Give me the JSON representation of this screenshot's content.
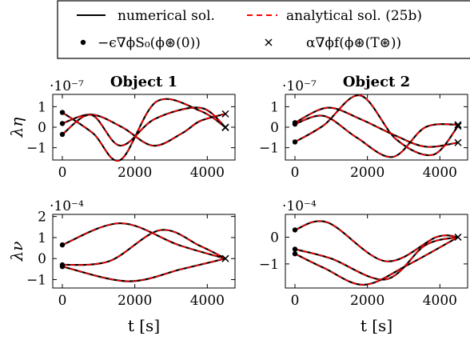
{
  "legend": {
    "numerical": "numerical sol.",
    "analytical": "analytical sol. (25b)",
    "initial": "−ϵ∇ϕS₀(ϕ⊛(0))",
    "final": "α∇ϕf(ϕ⊛(T⊛))"
  },
  "colors": {
    "numerical": "#000000",
    "analytical": "#ff0000"
  },
  "chart_data": [
    {
      "type": "line",
      "title": "Object 1",
      "ylabel": "λη",
      "xlabel": "",
      "multiplier": "·10⁻⁷",
      "xlim": [
        0,
        4500
      ],
      "ylim": [
        -1.6,
        1.6
      ],
      "xticks": [
        "0",
        "2000",
        "4000"
      ],
      "yticks": [
        "1",
        "0",
        "−1"
      ],
      "grid": false,
      "series": [
        {
          "x": [
            0,
            800,
            1650,
            2500,
            3300,
            3800,
            4500
          ],
          "values": [
            0.18,
            0.62,
            0.0,
            -0.9,
            -0.3,
            0.3,
            0.65
          ]
        },
        {
          "x": [
            0,
            850,
            1600,
            2600,
            3800,
            4500
          ],
          "values": [
            0.72,
            -0.3,
            -1.6,
            1.25,
            0.8,
            0.0
          ]
        },
        {
          "x": [
            0,
            800,
            1600,
            2550,
            3800,
            4500
          ],
          "values": [
            -0.35,
            0.6,
            -0.9,
            0.4,
            0.95,
            0.0
          ]
        }
      ],
      "markers_initial": [
        0.72,
        0.18,
        -0.35
      ],
      "markers_final": [
        0.65,
        0.0,
        -0.02
      ]
    },
    {
      "type": "line",
      "title": "Object 2",
      "ylabel": "",
      "xlabel": "",
      "multiplier": "·10⁻⁷",
      "xlim": [
        0,
        4500
      ],
      "ylim": [
        -1.6,
        1.6
      ],
      "xticks": [
        "0",
        "2000",
        "4000"
      ],
      "yticks": [
        "1",
        "0",
        "−1"
      ],
      "grid": false,
      "series": [
        {
          "x": [
            0,
            900,
            1800,
            2700,
            3600,
            4500
          ],
          "values": [
            0.22,
            0.95,
            0.4,
            -0.35,
            -0.95,
            -0.75
          ]
        },
        {
          "x": [
            0,
            800,
            1800,
            2800,
            3800,
            4500
          ],
          "values": [
            -0.72,
            0.1,
            1.55,
            -0.6,
            -1.35,
            0.05
          ]
        },
        {
          "x": [
            0,
            800,
            1700,
            2700,
            3600,
            4500
          ],
          "values": [
            0.15,
            0.55,
            -0.5,
            -1.45,
            0.0,
            0.12
          ]
        }
      ],
      "markers_initial": [
        0.22,
        0.15,
        -0.72
      ],
      "markers_final": [
        0.12,
        0.05,
        -0.75
      ]
    },
    {
      "type": "line",
      "title": "",
      "ylabel": "λν",
      "xlabel": "t [s]",
      "multiplier": "·10⁻⁴",
      "xlim": [
        0,
        4500
      ],
      "ylim": [
        -1.4,
        2.1
      ],
      "xticks": [
        "0",
        "2000",
        "4000"
      ],
      "yticks": [
        "2",
        "1",
        "0",
        "−1"
      ],
      "grid": false,
      "series": [
        {
          "x": [
            0,
            1600,
            3200,
            4500
          ],
          "values": [
            0.65,
            1.68,
            0.65,
            0.0
          ]
        },
        {
          "x": [
            0,
            1300,
            2700,
            3800,
            4500
          ],
          "values": [
            -0.3,
            -0.12,
            1.35,
            0.6,
            0.0
          ]
        },
        {
          "x": [
            0,
            1800,
            3300,
            4500
          ],
          "values": [
            -0.38,
            -1.08,
            -0.5,
            0.0
          ]
        }
      ],
      "markers_initial": [
        0.65,
        -0.3,
        -0.38
      ],
      "markers_final": [
        0.0
      ]
    },
    {
      "type": "line",
      "title": "",
      "ylabel": "",
      "xlabel": "t [s]",
      "multiplier": "·10⁻⁴",
      "xlim": [
        0,
        4500
      ],
      "ylim": [
        -1.9,
        0.85
      ],
      "xticks": [
        "0",
        "2000",
        "4000"
      ],
      "yticks": [
        "0",
        "−1"
      ],
      "grid": false,
      "series": [
        {
          "x": [
            0,
            900,
            2500,
            3900,
            4500
          ],
          "values": [
            0.27,
            0.55,
            -0.9,
            0.0,
            0.0
          ]
        },
        {
          "x": [
            0,
            800,
            1900,
            3100,
            4500
          ],
          "values": [
            -0.62,
            -1.15,
            -1.78,
            -1.05,
            0.0
          ]
        },
        {
          "x": [
            0,
            1000,
            2500,
            3600,
            4500
          ],
          "values": [
            -0.45,
            -0.8,
            -1.58,
            -0.3,
            0.0
          ]
        }
      ],
      "markers_initial": [
        0.27,
        -0.45,
        -0.62
      ],
      "markers_final": [
        0.0
      ]
    }
  ]
}
